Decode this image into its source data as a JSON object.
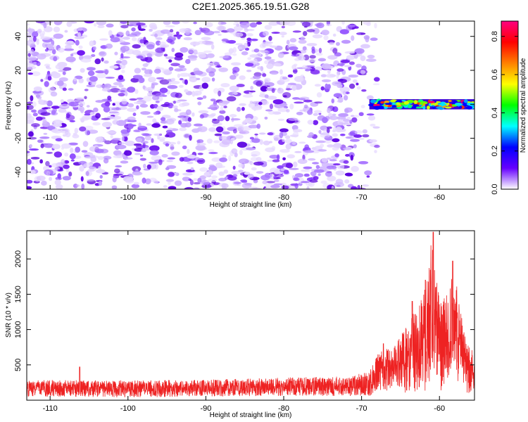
{
  "title": "C2E1.2025.365.19.51.G28",
  "chart_data": [
    {
      "type": "heatmap",
      "name": "spectrogram",
      "xlabel": "Height of straight line (km)",
      "ylabel": "Frequency (Hz)",
      "xlim": [
        -113,
        -55.5
      ],
      "ylim": [
        -50,
        49
      ],
      "x_ticks": [
        -110,
        -100,
        -90,
        -80,
        -70,
        -60
      ],
      "x_tick_labels": [
        "-110",
        "-100",
        "-90",
        "-80",
        "-70",
        "-60"
      ],
      "y_ticks": [
        -40,
        -20,
        0,
        20,
        40
      ],
      "y_tick_labels": [
        "-40",
        "-20",
        "0",
        "20",
        "40"
      ],
      "noise_region_end_km": -68,
      "signal_band": {
        "x_start": -69,
        "x_end": -55.5,
        "freq_center": 0,
        "freq_halfwidth": 3,
        "peak_amplitude": 0.85
      },
      "colorbar": {
        "label": "Normalized spectral amplitude",
        "range": [
          0,
          0.88
        ],
        "ticks": [
          0.0,
          0.2,
          0.4,
          0.6,
          0.8
        ],
        "tick_labels": [
          "0.0",
          "0.2",
          "0.4",
          "0.6",
          "0.8"
        ],
        "colors": [
          "#ffffff",
          "#6600ff",
          "#0000ff",
          "#00ffff",
          "#00ff00",
          "#ffff00",
          "#ff8000",
          "#ff0000",
          "#ff0080"
        ]
      }
    },
    {
      "type": "line",
      "name": "snr",
      "xlabel": "Height of straight line (km)",
      "ylabel": "SNR (10 * v/v)",
      "xlim": [
        -113,
        -55.5
      ],
      "ylim": [
        0,
        2400
      ],
      "x_ticks": [
        -110,
        -100,
        -90,
        -80,
        -70,
        -60
      ],
      "x_tick_labels": [
        "-110",
        "-100",
        "-90",
        "-80",
        "-70",
        "-60"
      ],
      "y_ticks": [
        500,
        1000,
        1500,
        2000
      ],
      "y_tick_labels": [
        "500",
        "1000",
        "1500",
        "2000"
      ],
      "color": "#ee2222",
      "envelope": [
        {
          "x": -113,
          "base": 170,
          "amp": 120
        },
        {
          "x": -100,
          "base": 160,
          "amp": 120
        },
        {
          "x": -90,
          "base": 170,
          "amp": 120
        },
        {
          "x": -80,
          "base": 190,
          "amp": 130
        },
        {
          "x": -72,
          "base": 200,
          "amp": 140
        },
        {
          "x": -69,
          "base": 230,
          "amp": 170
        },
        {
          "x": -67.5,
          "base": 450,
          "amp": 300
        },
        {
          "x": -66,
          "base": 420,
          "amp": 300
        },
        {
          "x": -64,
          "base": 600,
          "amp": 500
        },
        {
          "x": -62,
          "base": 800,
          "amp": 700
        },
        {
          "x": -61,
          "base": 1300,
          "amp": 1050
        },
        {
          "x": -60,
          "base": 750,
          "amp": 650
        },
        {
          "x": -59,
          "base": 900,
          "amp": 650
        },
        {
          "x": -58.3,
          "base": 1300,
          "amp": 750
        },
        {
          "x": -57.5,
          "base": 800,
          "amp": 600
        },
        {
          "x": -56.5,
          "base": 450,
          "amp": 350
        },
        {
          "x": -55.5,
          "base": 400,
          "amp": 300
        }
      ],
      "peaks": [
        {
          "x": -60.8,
          "y": 2380
        },
        {
          "x": -58.3,
          "y": 1970
        },
        {
          "x": -61.8,
          "y": 1700
        },
        {
          "x": -63.5,
          "y": 1400
        },
        {
          "x": -67.2,
          "y": 800
        },
        {
          "x": -106.2,
          "y": 470
        }
      ]
    }
  ]
}
